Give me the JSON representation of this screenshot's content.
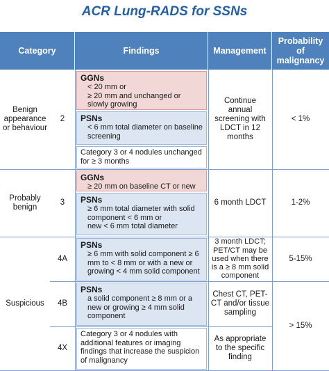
{
  "title": "ACR Lung-RADS for SSNs",
  "header": {
    "category": "Category",
    "findings": "Findings",
    "management": "Management",
    "probability": "Probability of malignancy"
  },
  "groups": [
    {
      "category": "Benign appearance or behaviour",
      "rows": [
        {
          "code": "2",
          "findings": [
            {
              "label": "GGNs",
              "items": [
                "< 20 mm or",
                "≥ 20 mm and unchanged or slowly growing"
              ]
            },
            {
              "label": "PSNs",
              "items": [
                "< 6 mm total diameter on baseline screening"
              ]
            },
            {
              "items": [
                "Category 3 or 4 nodules unchanged for ≥ 3 months"
              ]
            }
          ],
          "management": "Continue annual screening with LDCT in 12 months",
          "probability": "< 1%"
        }
      ]
    },
    {
      "category": "Probably benign",
      "rows": [
        {
          "code": "3",
          "findings": [
            {
              "label": "GGNs",
              "items": [
                "≥ 20 mm on baseline CT or new"
              ]
            },
            {
              "label": "PSNs",
              "items": [
                "≥ 6 mm total diameter with solid component < 6 mm or",
                "new < 6 mm total diameter"
              ]
            }
          ],
          "management": "6 month LDCT",
          "probability": "1-2%"
        }
      ]
    },
    {
      "category": "Suspicious",
      "rows": [
        {
          "code": "4A",
          "findings": [
            {
              "label": "PSNs",
              "items": [
                "≥ 6 mm with solid component ≥ 6 mm to < 8 mm or with a new or growing < 4 mm solid component"
              ]
            }
          ],
          "management": "3 month LDCT; PET/CT may be used when there is a ≥ 8 mm solid component",
          "probability": "5-15%"
        },
        {
          "code": "4B",
          "findings": [
            {
              "label": "PSNs",
              "items": [
                "a solid component ≥ 8 mm or a new or growing ≥ 4 mm solid component"
              ]
            }
          ],
          "management": "Chest CT, PET-CT and/or tissue sampling",
          "probability": "> 15%"
        },
        {
          "code": "4X",
          "findings": [
            {
              "items": [
                "Category 3 or 4 nodules with additional features or imaging findings that increase the suspicion of malignancy"
              ]
            }
          ],
          "management": "As appropriate to the specific finding"
        }
      ]
    }
  ]
}
